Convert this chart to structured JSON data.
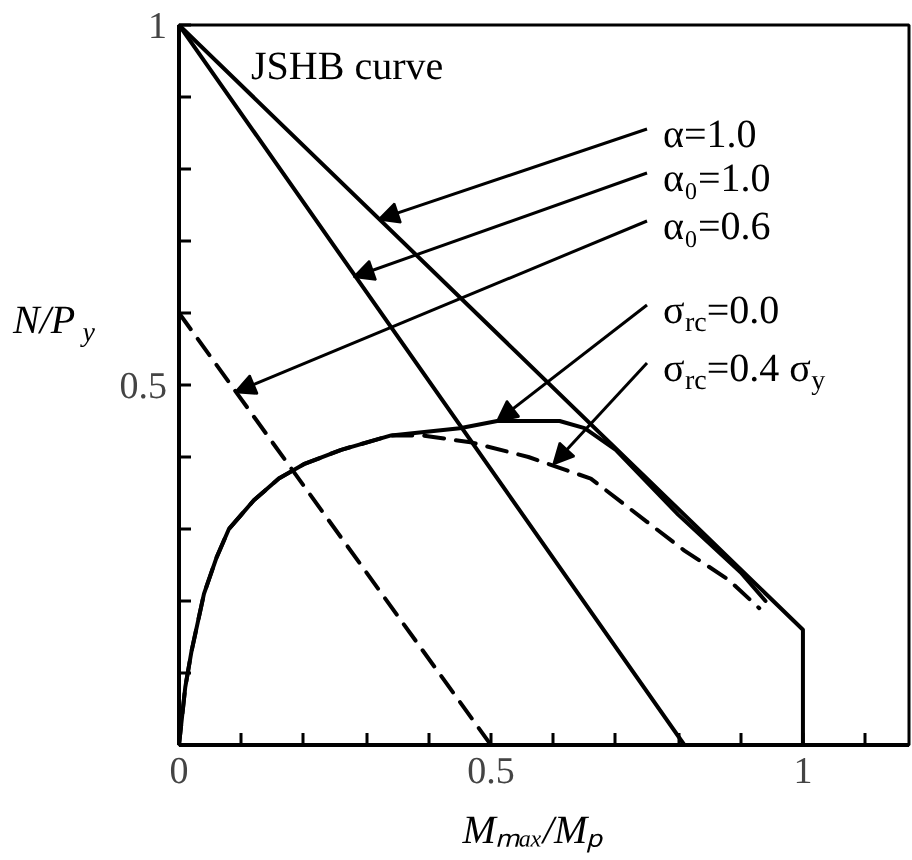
{
  "chart_data": {
    "type": "line",
    "xlabel": "Mₘₐₓ/Mₚ",
    "ylabel": "N/P$_{y}$",
    "xlim": [
      0,
      1.17
    ],
    "ylim": [
      0,
      1
    ],
    "xticks": [
      0,
      {
        "value": 0.1,
        "label": null
      },
      {
        "value": 0.2,
        "label": null
      },
      {
        "value": 0.3,
        "label": null
      },
      {
        "value": 0.4,
        "label": null
      },
      0.5,
      {
        "value": 0.6,
        "label": null
      },
      {
        "value": 0.7,
        "label": null
      },
      {
        "value": 0.8,
        "label": null
      },
      {
        "value": 0.9,
        "label": null
      },
      1,
      {
        "value": 1.1,
        "label": null
      }
    ],
    "yticks": [
      {
        "value": 0.1,
        "label": null
      },
      {
        "value": 0.2,
        "label": null
      },
      {
        "value": 0.3,
        "label": null
      },
      {
        "value": 0.4,
        "label": null
      },
      0.5,
      {
        "value": 0.6,
        "label": null
      },
      {
        "value": 0.7,
        "label": null
      },
      {
        "value": 0.8,
        "label": null
      },
      {
        "value": 0.9,
        "label": null
      },
      1
    ],
    "series": [
      {
        "color": "#000000",
        "line_style": "solid",
        "x": [
          0,
          1,
          1
        ],
        "values": [
          1,
          0.16,
          0
        ]
      },
      {
        "color": "#000000",
        "line_style": "solid",
        "x": [
          0,
          0.81
        ],
        "values": [
          1,
          0
        ]
      },
      {
        "color": "#000000",
        "line_style": "dashed",
        "x": [
          0,
          0.5
        ],
        "values": [
          0.6,
          0
        ]
      },
      {
        "color": "#000000",
        "line_style": "solid",
        "x": [
          0,
          0.01,
          0.02,
          0.03,
          0.04,
          0.06,
          0.08,
          0.1,
          0.12,
          0.16,
          0.2,
          0.26,
          0.34,
          0.45,
          0.51,
          0.61,
          0.65,
          0.7,
          0.8,
          0.9,
          0.94
        ],
        "values": [
          0,
          0.08,
          0.13,
          0.17,
          0.21,
          0.26,
          0.3,
          0.32,
          0.34,
          0.37,
          0.39,
          0.41,
          0.43,
          0.44,
          0.45,
          0.45,
          0.44,
          0.41,
          0.32,
          0.24,
          0.2
        ]
      },
      {
        "color": "#000000",
        "line_style": "dashed",
        "x": [
          0,
          0.01,
          0.02,
          0.03,
          0.04,
          0.06,
          0.08,
          0.1,
          0.12,
          0.16,
          0.2,
          0.26,
          0.34,
          0.39,
          0.47,
          0.56,
          0.66,
          0.75,
          0.81,
          0.88,
          0.93
        ],
        "values": [
          0,
          0.08,
          0.13,
          0.17,
          0.21,
          0.26,
          0.3,
          0.32,
          0.34,
          0.37,
          0.39,
          0.41,
          0.43,
          0.43,
          0.42,
          0.4,
          0.37,
          0.31,
          0.27,
          0.23,
          0.19
        ]
      }
    ],
    "annotations": [
      "JSHB curve",
      {
        "text": "α=1.0",
        "x": 0.32,
        "y": 0.73
      },
      {
        "text": "α₀=1.0",
        "x": 0.28,
        "y": 0.65
      },
      {
        "text": "α₀=0.6",
        "x": 0.09,
        "y": 0.49
      },
      {
        "text": "σ$_{rc}$=0.0",
        "x": 0.51,
        "y": 0.45
      },
      {
        "text": "σ$_{rc}$=0.4 σ$_{y}$",
        "x": 0.6,
        "y": 0.39
      }
    ]
  }
}
